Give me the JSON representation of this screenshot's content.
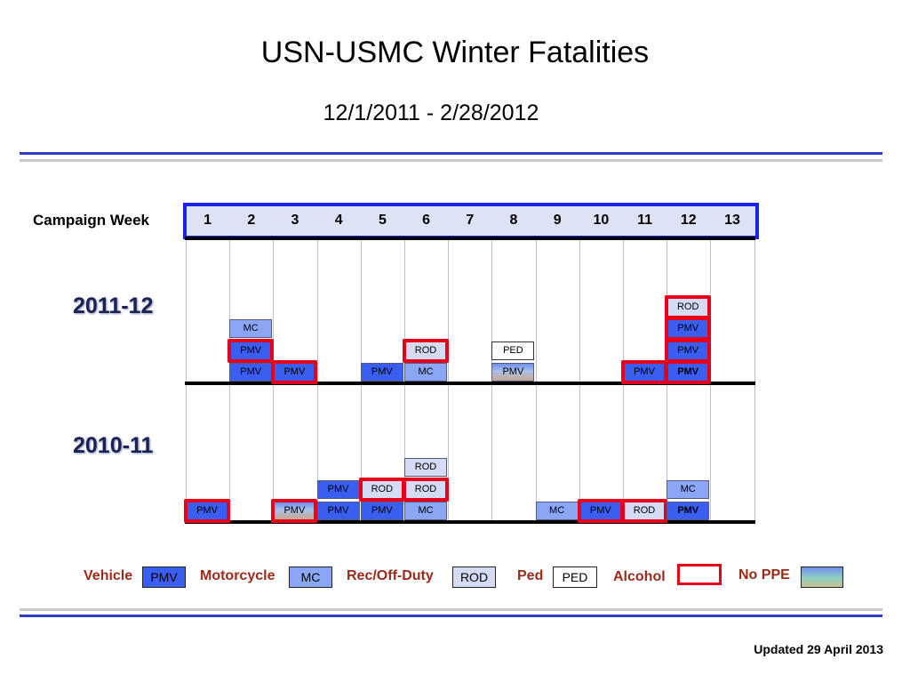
{
  "title": "USN-USMC Winter  Fatalities",
  "subtitle": "12/1/2011 - 2/28/2012",
  "chart_data": {
    "type": "table",
    "axis_label": "Campaign Week",
    "weeks": [
      "1",
      "2",
      "3",
      "4",
      "5",
      "6",
      "7",
      "8",
      "9",
      "10",
      "11",
      "12",
      "13"
    ],
    "seasons": [
      {
        "label": "2011-12",
        "events": [
          {
            "week": 2,
            "stack": 0,
            "type": "PMV",
            "alcohol": false,
            "no_ppe": false
          },
          {
            "week": 2,
            "stack": 1,
            "type": "PMV",
            "alcohol": true,
            "no_ppe": false
          },
          {
            "week": 2,
            "stack": 2,
            "type": "MC",
            "alcohol": false,
            "no_ppe": false
          },
          {
            "week": 3,
            "stack": 0,
            "type": "PMV",
            "alcohol": true,
            "no_ppe": false
          },
          {
            "week": 5,
            "stack": 0,
            "type": "PMV",
            "alcohol": false,
            "no_ppe": false
          },
          {
            "week": 6,
            "stack": 0,
            "type": "MC",
            "alcohol": false,
            "no_ppe": false
          },
          {
            "week": 6,
            "stack": 1,
            "type": "ROD",
            "alcohol": true,
            "no_ppe": false
          },
          {
            "week": 8,
            "stack": 0,
            "type": "PMV",
            "alcohol": false,
            "no_ppe": true
          },
          {
            "week": 8,
            "stack": 1,
            "type": "PED",
            "alcohol": false,
            "no_ppe": false
          },
          {
            "week": 11,
            "stack": 0,
            "type": "PMV",
            "alcohol": true,
            "no_ppe": false
          },
          {
            "week": 12,
            "stack": 0,
            "type": "PMV",
            "alcohol": true,
            "no_ppe": false,
            "bold": true
          },
          {
            "week": 12,
            "stack": 1,
            "type": "PMV",
            "alcohol": true,
            "no_ppe": false
          },
          {
            "week": 12,
            "stack": 2,
            "type": "PMV",
            "alcohol": true,
            "no_ppe": false
          },
          {
            "week": 12,
            "stack": 3,
            "type": "ROD",
            "alcohol": true,
            "no_ppe": false
          }
        ]
      },
      {
        "label": "2010-11",
        "events": [
          {
            "week": 1,
            "stack": 0,
            "type": "PMV",
            "alcohol": true,
            "no_ppe": false
          },
          {
            "week": 3,
            "stack": 0,
            "type": "PMV",
            "alcohol": true,
            "no_ppe": true
          },
          {
            "week": 4,
            "stack": 0,
            "type": "PMV",
            "alcohol": false,
            "no_ppe": false
          },
          {
            "week": 4,
            "stack": 1,
            "type": "PMV",
            "alcohol": false,
            "no_ppe": false
          },
          {
            "week": 5,
            "stack": 0,
            "type": "PMV",
            "alcohol": false,
            "no_ppe": false
          },
          {
            "week": 5,
            "stack": 1,
            "type": "ROD",
            "alcohol": true,
            "no_ppe": false
          },
          {
            "week": 6,
            "stack": 0,
            "type": "MC",
            "alcohol": false,
            "no_ppe": false
          },
          {
            "week": 6,
            "stack": 1,
            "type": "ROD",
            "alcohol": true,
            "no_ppe": false
          },
          {
            "week": 6,
            "stack": 2,
            "type": "ROD",
            "alcohol": false,
            "no_ppe": false
          },
          {
            "week": 9,
            "stack": 0,
            "type": "MC",
            "alcohol": false,
            "no_ppe": false
          },
          {
            "week": 10,
            "stack": 0,
            "type": "PMV",
            "alcohol": true,
            "no_ppe": false
          },
          {
            "week": 11,
            "stack": 0,
            "type": "ROD",
            "alcohol": true,
            "no_ppe": false
          },
          {
            "week": 12,
            "stack": 0,
            "type": "PMV",
            "alcohol": false,
            "no_ppe": false,
            "bold": true
          },
          {
            "week": 12,
            "stack": 1,
            "type": "MC",
            "alcohol": false,
            "no_ppe": false
          }
        ]
      }
    ]
  },
  "legend": [
    {
      "label": "Vehicle",
      "code": "PMV",
      "color": "#3a5ef0"
    },
    {
      "label": "Motorcycle",
      "code": "MC",
      "color": "#8aa6f4"
    },
    {
      "label": "Rec/Off-Duty",
      "code": "ROD",
      "color": "#d4dcf5"
    },
    {
      "label": "Ped",
      "code": "PED",
      "color": "#ffffff"
    }
  ],
  "legend_alcohol": {
    "label": "Alcohol",
    "color": "#e8001a"
  },
  "legend_noppe": {
    "label": "No  PPE"
  },
  "footer": "Updated 29 April 2013"
}
